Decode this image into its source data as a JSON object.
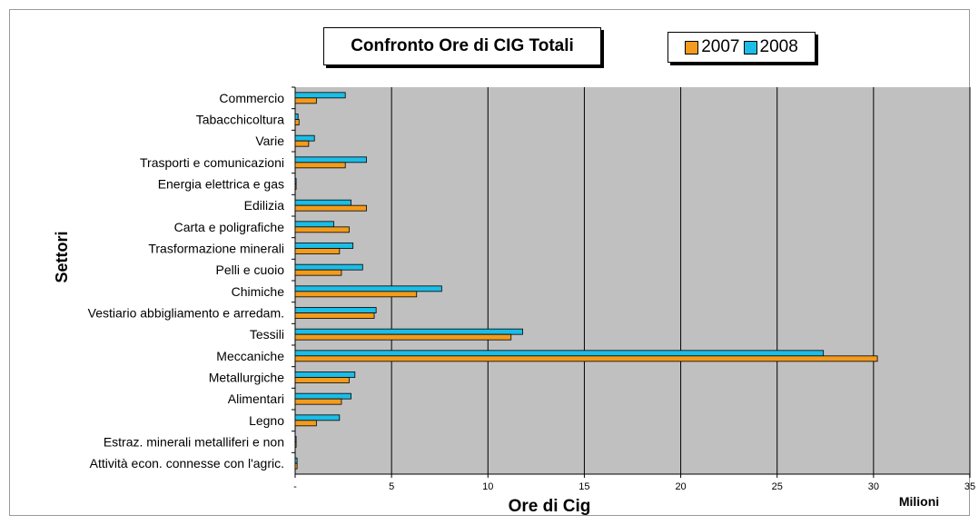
{
  "chart_data": {
    "type": "bar",
    "orientation": "horizontal",
    "title": "Confronto Ore di CIG Totali",
    "xlabel": "Ore di Cig",
    "ylabel": "Settori",
    "x_unit": "Milioni",
    "xlim": [
      0,
      35
    ],
    "x_ticks": [
      "-",
      "5",
      "10",
      "15",
      "20",
      "25",
      "30",
      "35"
    ],
    "grid": true,
    "legend_position": "top-right",
    "categories": [
      "Commercio",
      "Tabacchicoltura",
      "Varie",
      "Trasporti e comunicazioni",
      "Energia elettrica e gas",
      "Edilizia",
      "Carta e poligrafiche",
      "Trasformazione minerali",
      "Pelli e cuoio",
      "Chimiche",
      "Vestiario abbigliamento e arredam.",
      "Tessili",
      "Meccaniche",
      "Metallurgiche",
      "Alimentari",
      "Legno",
      "Estraz. minerali metalliferi e non",
      "Attività econ. connesse con l'agric."
    ],
    "series": [
      {
        "name": "2007",
        "color": "#f39b1c",
        "values": [
          1.1,
          0.2,
          0.7,
          2.6,
          0.05,
          3.7,
          2.8,
          2.3,
          2.4,
          6.3,
          4.1,
          11.2,
          30.2,
          2.8,
          2.4,
          1.1,
          0.05,
          0.1
        ]
      },
      {
        "name": "2008",
        "color": "#1cbde6",
        "values": [
          2.6,
          0.15,
          1.0,
          3.7,
          0.05,
          2.9,
          2.0,
          3.0,
          3.5,
          7.6,
          4.2,
          11.8,
          27.4,
          3.1,
          2.9,
          2.3,
          0.05,
          0.1
        ]
      }
    ]
  }
}
